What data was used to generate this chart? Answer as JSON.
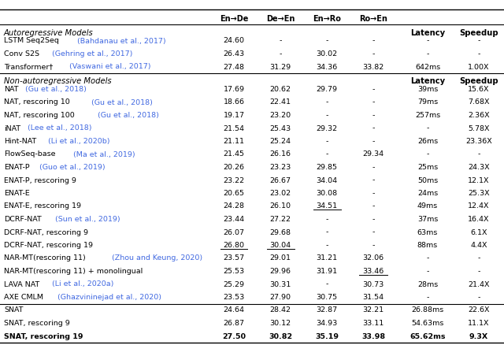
{
  "col_headers_row1": [
    "En→De",
    "De→En",
    "En→Ro",
    "Ro→En",
    "",
    ""
  ],
  "col_headers_row2": [
    "",
    "",
    "",
    "",
    "Latency",
    "Speedup"
  ],
  "rows": [
    {
      "name": "LSTM Seq2Seq",
      "cite": " (Bahdanau et al., 2017)",
      "vals": [
        "24.60",
        "-",
        "-",
        "-",
        "-",
        "-"
      ],
      "bold": false,
      "underline": [],
      "section": "ar"
    },
    {
      "name": "Conv S2S",
      "cite": " (Gehring et al., 2017)",
      "vals": [
        "26.43",
        "-",
        "30.02",
        "-",
        "-",
        "-"
      ],
      "bold": false,
      "underline": [],
      "section": "ar"
    },
    {
      "name": "Transformer†",
      "cite": " (Vaswani et al., 2017)",
      "vals": [
        "27.48",
        "31.29",
        "34.36",
        "33.82",
        "642ms",
        "1.00X"
      ],
      "bold": false,
      "underline": [],
      "section": "ar"
    },
    {
      "name": "NAT",
      "cite": " (Gu et al., 2018)",
      "vals": [
        "17.69",
        "20.62",
        "29.79",
        "-",
        "39ms",
        "15.6X"
      ],
      "bold": false,
      "underline": [],
      "section": "nar"
    },
    {
      "name": "NAT, rescoring 10",
      "cite": " (Gu et al., 2018)",
      "vals": [
        "18.66",
        "22.41",
        "-",
        "-",
        "79ms",
        "7.68X"
      ],
      "bold": false,
      "underline": [],
      "section": "nar"
    },
    {
      "name": "NAT, rescoring 100",
      "cite": " (Gu et al., 2018)",
      "vals": [
        "19.17",
        "23.20",
        "-",
        "-",
        "257ms",
        "2.36X"
      ],
      "bold": false,
      "underline": [],
      "section": "nar"
    },
    {
      "name": "iNAT",
      "cite": " (Lee et al., 2018)",
      "vals": [
        "21.54",
        "25.43",
        "29.32",
        "-",
        "-",
        "5.78X"
      ],
      "bold": false,
      "underline": [],
      "section": "nar"
    },
    {
      "name": "Hint-NAT",
      "cite": " (Li et al., 2020b)",
      "vals": [
        "21.11",
        "25.24",
        "-",
        "-",
        "26ms",
        "23.36X"
      ],
      "bold": false,
      "underline": [],
      "section": "nar"
    },
    {
      "name": "FlowSeq-base",
      "cite": " (Ma et al., 2019)",
      "vals": [
        "21.45",
        "26.16",
        "-",
        "29.34",
        "-",
        "-"
      ],
      "bold": false,
      "underline": [],
      "section": "nar"
    },
    {
      "name": "ENAT-P",
      "cite": " (Guo et al., 2019)",
      "vals": [
        "20.26",
        "23.23",
        "29.85",
        "-",
        "25ms",
        "24.3X"
      ],
      "bold": false,
      "underline": [],
      "section": "nar"
    },
    {
      "name": "ENAT-P, rescoring 9",
      "cite": "",
      "vals": [
        "23.22",
        "26.67",
        "34.04",
        "-",
        "50ms",
        "12.1X"
      ],
      "bold": false,
      "underline": [],
      "section": "nar"
    },
    {
      "name": "ENAT-E",
      "cite": "",
      "vals": [
        "20.65",
        "23.02",
        "30.08",
        "-",
        "24ms",
        "25.3X"
      ],
      "bold": false,
      "underline": [],
      "section": "nar"
    },
    {
      "name": "ENAT-E, rescoring 19",
      "cite": "",
      "vals": [
        "24.28",
        "26.10",
        "34.51",
        "-",
        "49ms",
        "12.4X"
      ],
      "bold": false,
      "underline": [
        2
      ],
      "section": "nar"
    },
    {
      "name": "DCRF-NAT",
      "cite": " (Sun et al., 2019)",
      "vals": [
        "23.44",
        "27.22",
        "-",
        "-",
        "37ms",
        "16.4X"
      ],
      "bold": false,
      "underline": [],
      "section": "nar"
    },
    {
      "name": "DCRF-NAT, rescoring 9",
      "cite": "",
      "vals": [
        "26.07",
        "29.68",
        "-",
        "-",
        "63ms",
        "6.1X"
      ],
      "bold": false,
      "underline": [],
      "section": "nar"
    },
    {
      "name": "DCRF-NAT, rescoring 19",
      "cite": "",
      "vals": [
        "26.80",
        "30.04",
        "-",
        "-",
        "88ms",
        "4.4X"
      ],
      "bold": false,
      "underline": [
        0,
        1
      ],
      "section": "nar"
    },
    {
      "name": "NAR-MT(rescoring 11)",
      "cite": " (Zhou and Keung, 2020)",
      "vals": [
        "23.57",
        "29.01",
        "31.21",
        "32.06",
        "-",
        "-"
      ],
      "bold": false,
      "underline": [],
      "section": "nar"
    },
    {
      "name": "NAR-MT(rescoring 11) + monolingual",
      "cite": "",
      "vals": [
        "25.53",
        "29.96",
        "31.91",
        "33.46",
        "-",
        "-"
      ],
      "bold": false,
      "underline": [
        3
      ],
      "section": "nar"
    },
    {
      "name": "LAVA NAT",
      "cite": " (Li et al., 2020a)",
      "vals": [
        "25.29",
        "30.31",
        "-",
        "30.73",
        "28ms",
        "21.4X"
      ],
      "bold": false,
      "underline": [],
      "section": "nar"
    },
    {
      "name": "AXE CMLM",
      "cite": " (Ghazvininejad et al., 2020)",
      "vals": [
        "23.53",
        "27.90",
        "30.75",
        "31.54",
        "-",
        "-"
      ],
      "bold": false,
      "underline": [],
      "section": "nar"
    },
    {
      "name": "SNAT",
      "cite": "",
      "vals": [
        "24.64",
        "28.42",
        "32.87",
        "32.21",
        "26.88ms",
        "22.6X"
      ],
      "bold": false,
      "underline": [],
      "section": "snat"
    },
    {
      "name": "SNAT, rescoring 9",
      "cite": "",
      "vals": [
        "26.87",
        "30.12",
        "34.93",
        "33.11",
        "54.63ms",
        "11.1X"
      ],
      "bold": false,
      "underline": [],
      "section": "snat"
    },
    {
      "name": "SNAT, rescoring 19",
      "cite": "",
      "vals": [
        "27.50",
        "30.82",
        "35.19",
        "33.98",
        "65.62ms",
        "9.3X"
      ],
      "bold": true,
      "underline": [],
      "section": "snat"
    }
  ],
  "cite_color": "#4169E1",
  "fig_width": 6.4,
  "fig_height": 4.39,
  "dpi": 100
}
